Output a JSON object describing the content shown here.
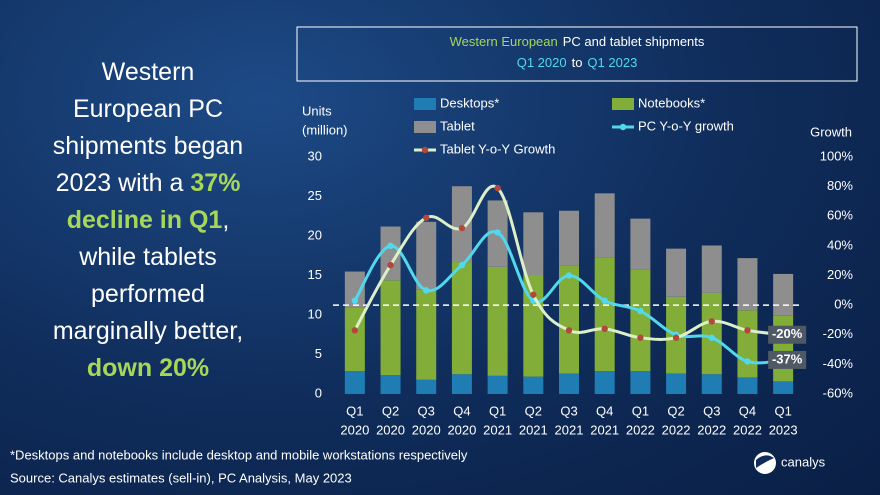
{
  "headline": [
    [
      {
        "text": "Western"
      }
    ],
    [
      {
        "text": "European PC"
      }
    ],
    [
      {
        "text": "shipments began"
      }
    ],
    [
      {
        "text": "2023 with a "
      },
      {
        "text": "37%",
        "highlight": true
      }
    ],
    [
      {
        "text": "decline in Q1",
        "highlight": true
      },
      {
        "text": ","
      }
    ],
    [
      {
        "text": "while tablets"
      }
    ],
    [
      {
        "text": "performed"
      }
    ],
    [
      {
        "text": "marginally better,"
      }
    ],
    [
      {
        "text": "down 20%",
        "highlight": true
      }
    ]
  ],
  "chart_data": {
    "type": "bar",
    "title": [
      "Western European",
      "PC and tablet shipments"
    ],
    "subtitle": [
      "Q1 2020",
      "to",
      "Q1 2023"
    ],
    "y_label": [
      "Units",
      "(million)"
    ],
    "y2_label": "Growth",
    "categories": [
      [
        "Q1",
        "2020"
      ],
      [
        "Q2",
        "2020"
      ],
      [
        "Q3",
        "2020"
      ],
      [
        "Q4",
        "2020"
      ],
      [
        "Q1",
        "2021"
      ],
      [
        "Q2",
        "2021"
      ],
      [
        "Q3",
        "2021"
      ],
      [
        "Q4",
        "2021"
      ],
      [
        "Q1",
        "2022"
      ],
      [
        "Q2",
        "2022"
      ],
      [
        "Q3",
        "2022"
      ],
      [
        "Q4",
        "2022"
      ],
      [
        "Q1",
        "2023"
      ]
    ],
    "stacked": true,
    "series": [
      {
        "name": "Desktops*",
        "color": "#1f7db3",
        "values": [
          2.9,
          2.4,
          1.8,
          2.5,
          2.3,
          2.2,
          2.6,
          2.9,
          2.9,
          2.6,
          2.5,
          2.1,
          1.6
        ]
      },
      {
        "name": "Notebooks*",
        "color": "#82ad38",
        "values": [
          8.0,
          12.0,
          11.4,
          14.2,
          13.8,
          12.8,
          13.7,
          14.4,
          12.9,
          9.7,
          10.3,
          8.5,
          8.3
        ]
      },
      {
        "name": "Tablet",
        "color": "#8e8e8e",
        "values": [
          4.6,
          6.8,
          8.6,
          9.6,
          8.4,
          8.0,
          6.9,
          8.1,
          6.4,
          6.1,
          6.0,
          6.6,
          5.3
        ]
      },
      {
        "name": "PC Y-o-Y growth",
        "type": "line",
        "axis": "y2",
        "color": "#52d8ec",
        "marker": "#52d8ec",
        "values": [
          3,
          40,
          10,
          27,
          49,
          3,
          20,
          3,
          -4,
          -20,
          -22,
          -38,
          -37
        ],
        "value_labels": [
          null,
          null,
          null,
          null,
          null,
          null,
          null,
          null,
          null,
          null,
          null,
          null,
          "-37%"
        ]
      },
      {
        "name": "Tablet Y-o-Y Growth",
        "type": "line",
        "axis": "y2",
        "color": "#dcefc8",
        "marker": "#b4473c",
        "values": [
          -17,
          27,
          59,
          52,
          79,
          7,
          -17,
          -16,
          -22,
          -22,
          -11,
          -17,
          -20
        ],
        "value_labels": [
          null,
          null,
          null,
          null,
          null,
          null,
          null,
          null,
          null,
          null,
          null,
          null,
          "-20%"
        ]
      }
    ],
    "ylim": [
      0,
      30
    ],
    "yticks": [
      0,
      5,
      10,
      15,
      20,
      25,
      30
    ],
    "y2lim": [
      -60,
      100
    ],
    "y2ticks": [
      {
        "value": -60,
        "label": "-60%"
      },
      {
        "value": -40,
        "label": "-40%"
      },
      {
        "value": -20,
        "label": "-20%"
      },
      {
        "value": 0,
        "label": "0%"
      },
      {
        "value": 20,
        "label": "20%"
      },
      {
        "value": 40,
        "label": "40%"
      },
      {
        "value": 60,
        "label": "60%"
      },
      {
        "value": 80,
        "label": "80%"
      },
      {
        "value": 100,
        "label": "100%"
      }
    ],
    "zero_line": 0,
    "legend": "top"
  },
  "footnote": "*Desktops and notebooks  include desktop and mobile workstations respectively",
  "source": "Source: Canalys estimates (sell-in), PC Analysis, May 2023",
  "logo": "canalys"
}
